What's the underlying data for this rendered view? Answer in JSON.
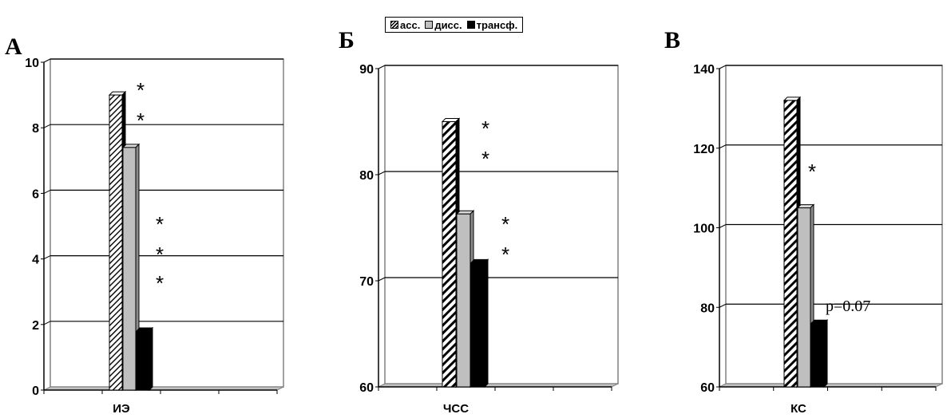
{
  "legend": {
    "items": [
      {
        "label": "асс.",
        "style": "hatch"
      },
      {
        "label": "дисс.",
        "style": "gray"
      },
      {
        "label": "трансф.",
        "style": "black"
      }
    ]
  },
  "colors": {
    "hatch_fg": "#000000",
    "hatch_bg": "#ffffff",
    "gray": "#bfbfbf",
    "gray_side": "#8c8c8c",
    "black": "#000000",
    "gridline": "#000000",
    "floor": "#c0c0c0",
    "frame": "#808080"
  },
  "chart_data": [
    {
      "type": "bar",
      "panel_label": "А",
      "categories": [
        "ИЭ"
      ],
      "series": [
        {
          "name": "асс.",
          "values": [
            9
          ]
        },
        {
          "name": "дисс.",
          "values": [
            7.4
          ]
        },
        {
          "name": "трансф.",
          "values": [
            1.8
          ]
        }
      ],
      "ylim": [
        0,
        10
      ],
      "yticks": [
        "0",
        "2",
        "4",
        "6",
        "8",
        "10"
      ],
      "grid": true,
      "annotations": [
        "*",
        "*",
        "*",
        "*",
        "*"
      ]
    },
    {
      "type": "bar",
      "panel_label": "Б",
      "categories": [
        "ЧСС"
      ],
      "series": [
        {
          "name": "асс.",
          "values": [
            85
          ]
        },
        {
          "name": "дисс.",
          "values": [
            76.3
          ]
        },
        {
          "name": "трансф.",
          "values": [
            71.7
          ]
        }
      ],
      "ylim": [
        60,
        90
      ],
      "yticks": [
        "60",
        "70",
        "80",
        "90"
      ],
      "grid": true,
      "annotations": [
        "*",
        "*",
        "*",
        "*"
      ]
    },
    {
      "type": "bar",
      "panel_label": "В",
      "categories": [
        "КС"
      ],
      "series": [
        {
          "name": "асс.",
          "values": [
            132
          ]
        },
        {
          "name": "дисс.",
          "values": [
            105
          ]
        },
        {
          "name": "трансф.",
          "values": [
            76
          ]
        }
      ],
      "ylim": [
        60,
        140
      ],
      "yticks": [
        "60",
        "80",
        "100",
        "120",
        "140"
      ],
      "grid": true,
      "annotations": [
        "*",
        "p=0.07"
      ]
    }
  ]
}
